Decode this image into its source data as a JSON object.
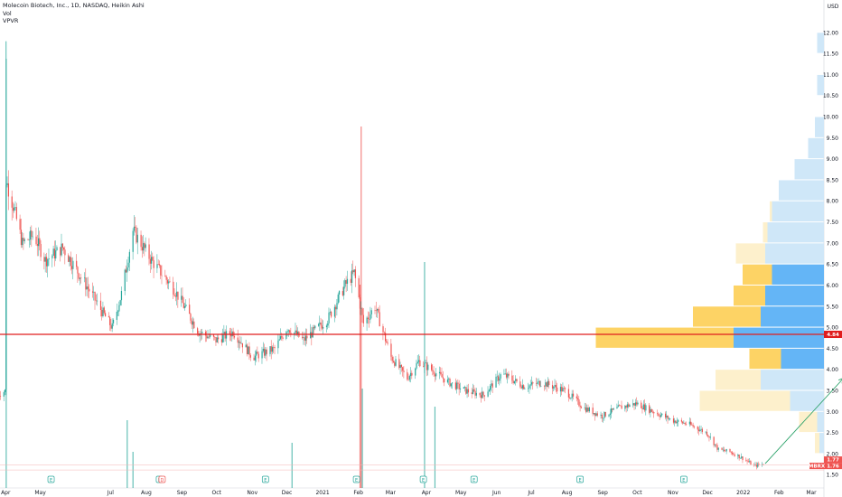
{
  "header": {
    "title": "Molecoin Biotech, Inc., 1D, NASDAQ, Heikin Ashi",
    "vol_label": "Vol",
    "vpvr_label": "VPVR"
  },
  "currency": "USD",
  "colors": {
    "up": "#26a69a",
    "down": "#ef5350",
    "vp_up": "#64b5f6",
    "vp_down": "#fdd365",
    "vp_up_light": "#cfe7f8",
    "vp_down_light": "#fdf0cc",
    "level_line": "#e01d1d",
    "arrow": "#2ea36b"
  },
  "chart_data": {
    "type": "candlestick",
    "title": "Molecoin Biotech, Inc., 1D, NASDAQ, Heikin Ashi",
    "ylim": [
      1.3,
      12.2
    ],
    "y_ticks": [
      "1.50",
      "2.00",
      "2.50",
      "3.00",
      "3.50",
      "4.00",
      "4.50",
      "5.00",
      "5.50",
      "6.00",
      "6.50",
      "7.00",
      "7.50",
      "8.00",
      "8.50",
      "9.00",
      "9.50",
      "10.00",
      "10.50",
      "11.00",
      "11.50",
      "12.00"
    ],
    "x_ticks": [
      "Apr",
      "May",
      "Jul",
      "Aug",
      "Sep",
      "Oct",
      "Nov",
      "Dec",
      "2021",
      "Feb",
      "Mar",
      "Apr",
      "May",
      "Jun",
      "Jul",
      "Aug",
      "Sep",
      "Oct",
      "Nov",
      "Dec",
      "2022",
      "Feb",
      "Mar"
    ],
    "price_path": [
      [
        "2020-03-25",
        3.4
      ],
      [
        "2020-03-31",
        3.5
      ],
      [
        "2020-04-01",
        8.5
      ],
      [
        "2020-04-07",
        7.9
      ],
      [
        "2020-04-15",
        7.0
      ],
      [
        "2020-04-25",
        7.2
      ],
      [
        "2020-05-05",
        6.6
      ],
      [
        "2020-05-20",
        6.9
      ],
      [
        "2020-06-05",
        6.2
      ],
      [
        "2020-06-25",
        5.3
      ],
      [
        "2020-07-02",
        5.0
      ],
      [
        "2020-07-10",
        5.8
      ],
      [
        "2020-07-20",
        7.3
      ],
      [
        "2020-08-05",
        6.6
      ],
      [
        "2020-08-25",
        5.9
      ],
      [
        "2020-09-15",
        4.9
      ],
      [
        "2020-09-30",
        4.7
      ],
      [
        "2020-10-15",
        4.9
      ],
      [
        "2020-11-01",
        4.3
      ],
      [
        "2020-11-20",
        4.5
      ],
      [
        "2020-12-01",
        5.0
      ],
      [
        "2020-12-15",
        4.7
      ],
      [
        "2021-01-05",
        5.2
      ],
      [
        "2021-01-20",
        6.0
      ],
      [
        "2021-01-28",
        6.3
      ],
      [
        "2021-02-05",
        5.1
      ],
      [
        "2021-02-15",
        5.5
      ],
      [
        "2021-03-01",
        4.3
      ],
      [
        "2021-03-15",
        3.8
      ],
      [
        "2021-03-25",
        4.2
      ],
      [
        "2021-04-05",
        4.0
      ],
      [
        "2021-04-20",
        3.7
      ],
      [
        "2021-05-05",
        3.5
      ],
      [
        "2021-05-20",
        3.4
      ],
      [
        "2021-06-05",
        3.9
      ],
      [
        "2021-06-25",
        3.6
      ],
      [
        "2021-07-10",
        3.7
      ],
      [
        "2021-07-30",
        3.5
      ],
      [
        "2021-08-15",
        3.1
      ],
      [
        "2021-08-31",
        2.9
      ],
      [
        "2021-09-15",
        3.1
      ],
      [
        "2021-09-30",
        3.2
      ],
      [
        "2021-10-15",
        3.0
      ],
      [
        "2021-10-31",
        2.8
      ],
      [
        "2021-11-15",
        2.7
      ],
      [
        "2021-11-30",
        2.5
      ],
      [
        "2021-12-10",
        2.1
      ],
      [
        "2021-12-20",
        2.05
      ],
      [
        "2021-12-31",
        1.9
      ],
      [
        "2022-01-10",
        1.72
      ],
      [
        "2022-01-18",
        1.76
      ]
    ],
    "volume_spikes": [
      [
        "2020-04-01",
        0.95
      ],
      [
        "2020-07-15",
        0.15
      ],
      [
        "2020-07-20",
        0.08
      ],
      [
        "2020-12-05",
        0.1
      ],
      [
        "2021-02-02",
        0.45
      ],
      [
        "2021-02-03",
        0.8
      ],
      [
        "2021-02-04",
        0.22
      ],
      [
        "2021-03-30",
        0.5
      ],
      [
        "2021-04-08",
        0.18
      ]
    ],
    "earnings_markers": [
      [
        "2020-05-10",
        "E"
      ],
      [
        "2020-08-12",
        "E"
      ],
      [
        "2020-11-12",
        "E"
      ],
      [
        "2021-01-30",
        "E"
      ],
      [
        "2021-03-29",
        "E"
      ],
      [
        "2021-05-12",
        "E"
      ],
      [
        "2021-08-12",
        "E"
      ],
      [
        "2021-11-10",
        "E"
      ]
    ],
    "dividend_markers": [
      [
        "2020-08-12",
        "D"
      ]
    ],
    "vpvr_rows": [
      {
        "price": 11.5,
        "up": 0.03,
        "down": 0.0
      },
      {
        "price": 10.5,
        "up": 0.03,
        "down": 0.0
      },
      {
        "price": 9.5,
        "up": 0.04,
        "down": 0.0
      },
      {
        "price": 9.0,
        "up": 0.07,
        "down": 0.0
      },
      {
        "price": 8.5,
        "up": 0.13,
        "down": 0.0
      },
      {
        "price": 8.0,
        "up": 0.2,
        "down": 0.0
      },
      {
        "price": 7.5,
        "up": 0.23,
        "down": 0.01
      },
      {
        "price": 7.0,
        "up": 0.25,
        "down": 0.02
      },
      {
        "price": 6.5,
        "up": 0.26,
        "down": 0.13
      },
      {
        "price": 6.0,
        "up": 0.23,
        "down": 0.13
      },
      {
        "price": 5.5,
        "up": 0.26,
        "down": 0.14
      },
      {
        "price": 5.0,
        "up": 0.28,
        "down": 0.3
      },
      {
        "price": 4.5,
        "up": 0.4,
        "down": 0.61
      },
      {
        "price": 4.0,
        "up": 0.19,
        "down": 0.14
      },
      {
        "price": 3.5,
        "up": 0.28,
        "down": 0.2
      },
      {
        "price": 3.0,
        "up": 0.15,
        "down": 0.4
      },
      {
        "price": 2.5,
        "up": 0.03,
        "down": 0.08
      },
      {
        "price": 2.0,
        "up": 0.02,
        "down": 0.02
      }
    ],
    "vpvr_highlight": [
      4.0,
      6.5
    ],
    "horizontal_level": 4.84,
    "level_label": "4.84",
    "last_price_label": "1.77",
    "ticker_tag": "MBRX",
    "ticker_price_label": "1.76",
    "trend_arrow": {
      "from": [
        "2022-01-20",
        1.77
      ],
      "to": [
        "2022-03-29",
        3.8
      ]
    }
  }
}
